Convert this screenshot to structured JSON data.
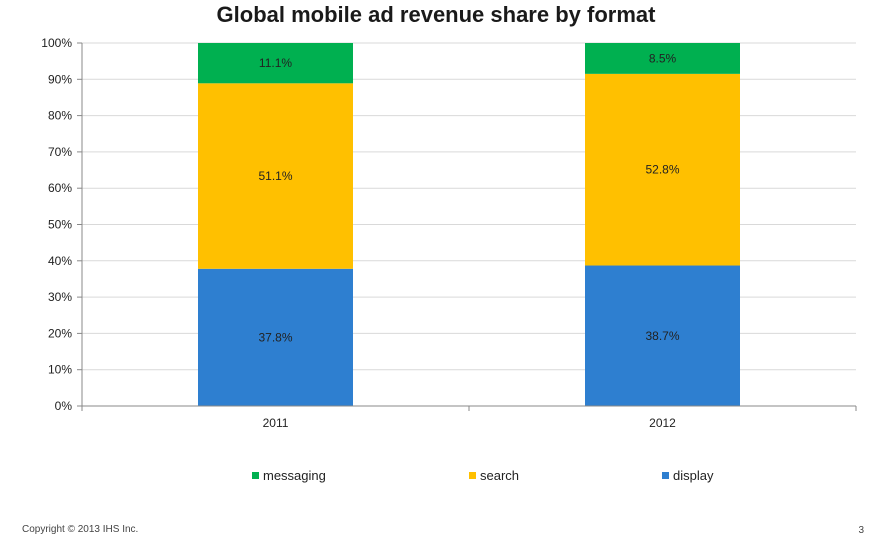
{
  "title": "Global mobile ad revenue share by format",
  "footer": {
    "copyright": "Copyright © 2013 IHS Inc.",
    "page_number": "3"
  },
  "colors": {
    "messaging": "#00b050",
    "search": "#ffc000",
    "display": "#2e7fd0"
  },
  "chart_data": {
    "type": "bar",
    "stacked": true,
    "title": "Global mobile ad revenue share by format",
    "categories": [
      "2011",
      "2012"
    ],
    "series": [
      {
        "name": "display",
        "values": [
          37.8,
          38.7
        ],
        "labels": [
          "37.8%",
          "38.7%"
        ],
        "color": "#2e7fd0"
      },
      {
        "name": "search",
        "values": [
          51.1,
          52.8
        ],
        "labels": [
          "51.1%",
          "52.8%"
        ],
        "color": "#ffc000"
      },
      {
        "name": "messaging",
        "values": [
          11.1,
          8.5
        ],
        "labels": [
          "11.1%",
          "8.5%"
        ],
        "color": "#00b050"
      }
    ],
    "ylim": [
      0,
      100
    ],
    "yticks": [
      "0%",
      "10%",
      "20%",
      "30%",
      "40%",
      "50%",
      "60%",
      "70%",
      "80%",
      "90%",
      "100%"
    ],
    "grid": true,
    "legend": {
      "placement": "bottom",
      "order": [
        "messaging",
        "search",
        "display"
      ]
    }
  }
}
